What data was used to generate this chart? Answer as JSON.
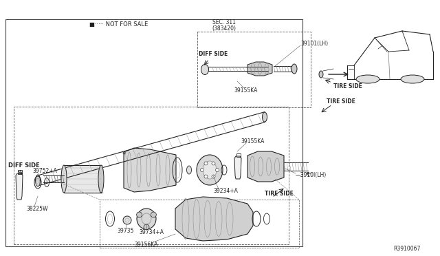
{
  "bg_color": "#ffffff",
  "line_color": "#222222",
  "text_color": "#222222",
  "not_for_sale_text": "■····· NOT FOR SALE",
  "ref_code": "R3910067",
  "sec311": "SEC. 311\n(383420)"
}
